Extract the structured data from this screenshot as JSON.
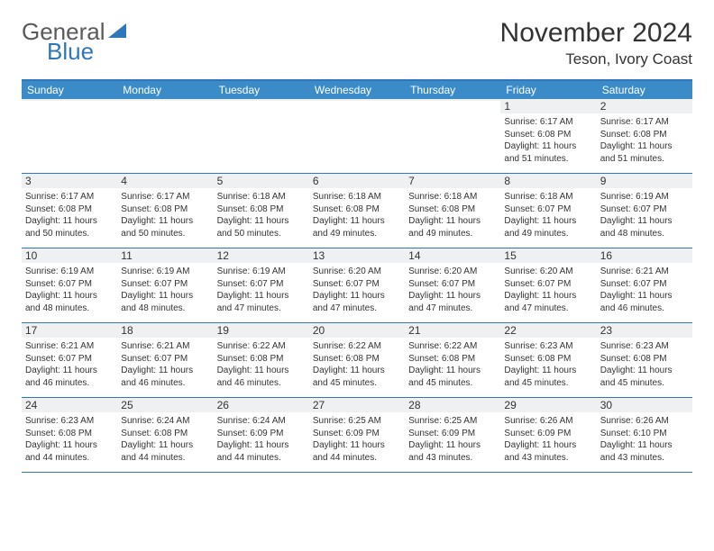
{
  "logo": {
    "part1": "General",
    "part2": "Blue"
  },
  "title": "November 2024",
  "location": "Teson, Ivory Coast",
  "colors": {
    "header_bg": "#3b8bc8",
    "border": "#2f77bb",
    "shade": "#eef0f1",
    "text": "#333333",
    "logo_gray": "#5a5a5a",
    "logo_blue": "#2f77bb"
  },
  "daynames": [
    "Sunday",
    "Monday",
    "Tuesday",
    "Wednesday",
    "Thursday",
    "Friday",
    "Saturday"
  ],
  "weeks": [
    [
      {
        "n": "",
        "sr": "",
        "ss": "",
        "dl": ""
      },
      {
        "n": "",
        "sr": "",
        "ss": "",
        "dl": ""
      },
      {
        "n": "",
        "sr": "",
        "ss": "",
        "dl": ""
      },
      {
        "n": "",
        "sr": "",
        "ss": "",
        "dl": ""
      },
      {
        "n": "",
        "sr": "",
        "ss": "",
        "dl": ""
      },
      {
        "n": "1",
        "sr": "Sunrise: 6:17 AM",
        "ss": "Sunset: 6:08 PM",
        "dl": "Daylight: 11 hours and 51 minutes."
      },
      {
        "n": "2",
        "sr": "Sunrise: 6:17 AM",
        "ss": "Sunset: 6:08 PM",
        "dl": "Daylight: 11 hours and 51 minutes."
      }
    ],
    [
      {
        "n": "3",
        "sr": "Sunrise: 6:17 AM",
        "ss": "Sunset: 6:08 PM",
        "dl": "Daylight: 11 hours and 50 minutes."
      },
      {
        "n": "4",
        "sr": "Sunrise: 6:17 AM",
        "ss": "Sunset: 6:08 PM",
        "dl": "Daylight: 11 hours and 50 minutes."
      },
      {
        "n": "5",
        "sr": "Sunrise: 6:18 AM",
        "ss": "Sunset: 6:08 PM",
        "dl": "Daylight: 11 hours and 50 minutes."
      },
      {
        "n": "6",
        "sr": "Sunrise: 6:18 AM",
        "ss": "Sunset: 6:08 PM",
        "dl": "Daylight: 11 hours and 49 minutes."
      },
      {
        "n": "7",
        "sr": "Sunrise: 6:18 AM",
        "ss": "Sunset: 6:08 PM",
        "dl": "Daylight: 11 hours and 49 minutes."
      },
      {
        "n": "8",
        "sr": "Sunrise: 6:18 AM",
        "ss": "Sunset: 6:07 PM",
        "dl": "Daylight: 11 hours and 49 minutes."
      },
      {
        "n": "9",
        "sr": "Sunrise: 6:19 AM",
        "ss": "Sunset: 6:07 PM",
        "dl": "Daylight: 11 hours and 48 minutes."
      }
    ],
    [
      {
        "n": "10",
        "sr": "Sunrise: 6:19 AM",
        "ss": "Sunset: 6:07 PM",
        "dl": "Daylight: 11 hours and 48 minutes."
      },
      {
        "n": "11",
        "sr": "Sunrise: 6:19 AM",
        "ss": "Sunset: 6:07 PM",
        "dl": "Daylight: 11 hours and 48 minutes."
      },
      {
        "n": "12",
        "sr": "Sunrise: 6:19 AM",
        "ss": "Sunset: 6:07 PM",
        "dl": "Daylight: 11 hours and 47 minutes."
      },
      {
        "n": "13",
        "sr": "Sunrise: 6:20 AM",
        "ss": "Sunset: 6:07 PM",
        "dl": "Daylight: 11 hours and 47 minutes."
      },
      {
        "n": "14",
        "sr": "Sunrise: 6:20 AM",
        "ss": "Sunset: 6:07 PM",
        "dl": "Daylight: 11 hours and 47 minutes."
      },
      {
        "n": "15",
        "sr": "Sunrise: 6:20 AM",
        "ss": "Sunset: 6:07 PM",
        "dl": "Daylight: 11 hours and 47 minutes."
      },
      {
        "n": "16",
        "sr": "Sunrise: 6:21 AM",
        "ss": "Sunset: 6:07 PM",
        "dl": "Daylight: 11 hours and 46 minutes."
      }
    ],
    [
      {
        "n": "17",
        "sr": "Sunrise: 6:21 AM",
        "ss": "Sunset: 6:07 PM",
        "dl": "Daylight: 11 hours and 46 minutes."
      },
      {
        "n": "18",
        "sr": "Sunrise: 6:21 AM",
        "ss": "Sunset: 6:07 PM",
        "dl": "Daylight: 11 hours and 46 minutes."
      },
      {
        "n": "19",
        "sr": "Sunrise: 6:22 AM",
        "ss": "Sunset: 6:08 PM",
        "dl": "Daylight: 11 hours and 46 minutes."
      },
      {
        "n": "20",
        "sr": "Sunrise: 6:22 AM",
        "ss": "Sunset: 6:08 PM",
        "dl": "Daylight: 11 hours and 45 minutes."
      },
      {
        "n": "21",
        "sr": "Sunrise: 6:22 AM",
        "ss": "Sunset: 6:08 PM",
        "dl": "Daylight: 11 hours and 45 minutes."
      },
      {
        "n": "22",
        "sr": "Sunrise: 6:23 AM",
        "ss": "Sunset: 6:08 PM",
        "dl": "Daylight: 11 hours and 45 minutes."
      },
      {
        "n": "23",
        "sr": "Sunrise: 6:23 AM",
        "ss": "Sunset: 6:08 PM",
        "dl": "Daylight: 11 hours and 45 minutes."
      }
    ],
    [
      {
        "n": "24",
        "sr": "Sunrise: 6:23 AM",
        "ss": "Sunset: 6:08 PM",
        "dl": "Daylight: 11 hours and 44 minutes."
      },
      {
        "n": "25",
        "sr": "Sunrise: 6:24 AM",
        "ss": "Sunset: 6:08 PM",
        "dl": "Daylight: 11 hours and 44 minutes."
      },
      {
        "n": "26",
        "sr": "Sunrise: 6:24 AM",
        "ss": "Sunset: 6:09 PM",
        "dl": "Daylight: 11 hours and 44 minutes."
      },
      {
        "n": "27",
        "sr": "Sunrise: 6:25 AM",
        "ss": "Sunset: 6:09 PM",
        "dl": "Daylight: 11 hours and 44 minutes."
      },
      {
        "n": "28",
        "sr": "Sunrise: 6:25 AM",
        "ss": "Sunset: 6:09 PM",
        "dl": "Daylight: 11 hours and 43 minutes."
      },
      {
        "n": "29",
        "sr": "Sunrise: 6:26 AM",
        "ss": "Sunset: 6:09 PM",
        "dl": "Daylight: 11 hours and 43 minutes."
      },
      {
        "n": "30",
        "sr": "Sunrise: 6:26 AM",
        "ss": "Sunset: 6:10 PM",
        "dl": "Daylight: 11 hours and 43 minutes."
      }
    ]
  ]
}
